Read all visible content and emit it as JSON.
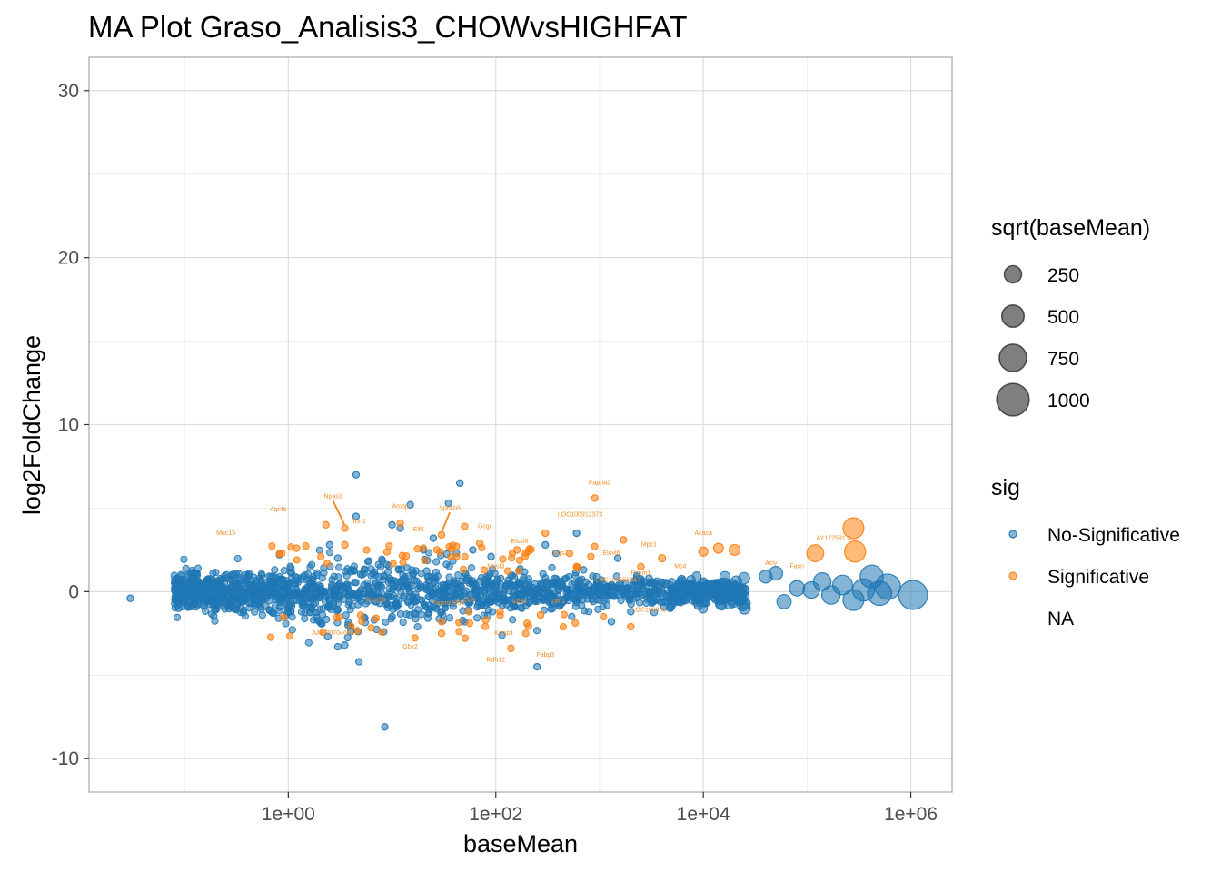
{
  "chart_data": {
    "type": "scatter",
    "title": "MA Plot Graso_Analisis3_CHOWvsHIGHFAT",
    "xlabel": "baseMean",
    "ylabel": "log2FoldChange",
    "x_scale": "log10",
    "xlim": [
      0.012,
      2500000
    ],
    "ylim": [
      -12,
      32
    ],
    "x_ticks": [
      {
        "value": 1,
        "label": "1e+00"
      },
      {
        "value": 100,
        "label": "1e+02"
      },
      {
        "value": 10000,
        "label": "1e+04"
      },
      {
        "value": 1000000,
        "label": "1e+06"
      }
    ],
    "y_ticks": [
      {
        "value": -10,
        "label": "-10"
      },
      {
        "value": 0,
        "label": "0"
      },
      {
        "value": 10,
        "label": "10"
      },
      {
        "value": 20,
        "label": "20"
      },
      {
        "value": 30,
        "label": "30"
      }
    ],
    "grid": true,
    "colors": {
      "No-Significative": "#1f77b4",
      "Significative": "#ff7f0e",
      "label": "#f28e2b",
      "legend_size_point": "#000000"
    },
    "size_legend": {
      "title": "sqrt(baseMean)",
      "entries": [
        {
          "value": 250,
          "label": "250"
        },
        {
          "value": 500,
          "label": "500"
        },
        {
          "value": 750,
          "label": "750"
        },
        {
          "value": 1000,
          "label": "1000"
        }
      ]
    },
    "color_legend": {
      "title": "sig",
      "entries": [
        {
          "key": "No-Significative",
          "label": "No-Significative"
        },
        {
          "key": "Significative",
          "label": "Significative"
        },
        {
          "key": "NA",
          "label": "NA"
        }
      ]
    },
    "series": [
      {
        "name": "No-Significative",
        "points": [
          {
            "x": 0.03,
            "y": -0.4
          },
          {
            "x": 0.8,
            "y": 0.2
          },
          {
            "x": 4.5,
            "y": 7.0
          },
          {
            "x": 45,
            "y": 6.5
          },
          {
            "x": 4.5,
            "y": 4.5
          },
          {
            "x": 10,
            "y": 4.0
          },
          {
            "x": 35,
            "y": 5.3
          },
          {
            "x": 15,
            "y": 5.2
          },
          {
            "x": 12,
            "y": 3.8
          },
          {
            "x": 25,
            "y": 3.2
          },
          {
            "x": 2.5,
            "y": 2.8
          },
          {
            "x": 3,
            "y": 2.0
          },
          {
            "x": 20,
            "y": 2.5
          },
          {
            "x": 60,
            "y": 2.5
          },
          {
            "x": 90,
            "y": 2.1
          },
          {
            "x": 300,
            "y": 2.8
          },
          {
            "x": 380,
            "y": 2.3
          },
          {
            "x": 600,
            "y": 3.5
          },
          {
            "x": 1500,
            "y": 2.0
          },
          {
            "x": 2.4,
            "y": -2.7
          },
          {
            "x": 4,
            "y": -2.4
          },
          {
            "x": 3.5,
            "y": -3.2
          },
          {
            "x": 3,
            "y": -3.3
          },
          {
            "x": 4.8,
            "y": -4.2
          },
          {
            "x": 8.5,
            "y": -8.1
          },
          {
            "x": 10,
            "y": -1.5
          },
          {
            "x": 30,
            "y": -1.2
          },
          {
            "x": 2,
            "y": -1.8
          },
          {
            "x": 250,
            "y": -4.5
          },
          {
            "x": 1300,
            "y": -1.8
          },
          {
            "x": 2000,
            "y": -1.2
          },
          {
            "x": 6000,
            "y": 0.6
          },
          {
            "x": 9000,
            "y": -0.8
          },
          {
            "x": 15000,
            "y": 0.5
          },
          {
            "x": 25000,
            "y": -1.0
          },
          {
            "x": 40000,
            "y": 0.9
          },
          {
            "x": 50000,
            "y": 1.1
          },
          {
            "x": 60000,
            "y": -0.6
          },
          {
            "x": 80000,
            "y": 0.2
          },
          {
            "x": 110000,
            "y": 0.1
          },
          {
            "x": 140000,
            "y": 0.6
          },
          {
            "x": 170000,
            "y": -0.2
          },
          {
            "x": 220000,
            "y": 0.4
          },
          {
            "x": 280000,
            "y": -0.5
          },
          {
            "x": 350000,
            "y": 0.1
          },
          {
            "x": 420000,
            "y": 0.9
          },
          {
            "x": 600000,
            "y": 0.3
          },
          {
            "x": 1050000,
            "y": -0.2
          },
          {
            "x": 500000,
            "y": -0.1
          },
          {
            "x": 3000,
            "y": 0.8
          },
          {
            "x": 4500,
            "y": -0.3
          },
          {
            "x": 700,
            "y": 1.3
          },
          {
            "x": 150,
            "y": -0.9
          },
          {
            "x": 0.3,
            "y": 1.0
          },
          {
            "x": 0.15,
            "y": -0.8
          }
        ]
      },
      {
        "name": "Significative",
        "points": [
          {
            "x": 900,
            "y": 5.6
          },
          {
            "x": 280000,
            "y": 3.8
          },
          {
            "x": 290000,
            "y": 2.4
          },
          {
            "x": 120000,
            "y": 2.3
          },
          {
            "x": 10000,
            "y": 2.4
          },
          {
            "x": 14000,
            "y": 2.6
          },
          {
            "x": 20000,
            "y": 2.5
          },
          {
            "x": 1700,
            "y": 3.1
          },
          {
            "x": 3.5,
            "y": 3.8
          },
          {
            "x": 2.3,
            "y": 4.0
          },
          {
            "x": 1.2,
            "y": 2.6
          },
          {
            "x": 3.5,
            "y": 2.8
          },
          {
            "x": 50,
            "y": 3.9
          },
          {
            "x": 30,
            "y": 3.4
          },
          {
            "x": 300,
            "y": 3.5
          },
          {
            "x": 160,
            "y": 2.5
          },
          {
            "x": 12,
            "y": 4.1
          },
          {
            "x": 20,
            "y": 2.6
          },
          {
            "x": 70,
            "y": 2.9
          },
          {
            "x": 2500,
            "y": 1.5
          },
          {
            "x": 4000,
            "y": 2.0
          },
          {
            "x": 30,
            "y": -1.8
          },
          {
            "x": 30,
            "y": -2.5
          },
          {
            "x": 140,
            "y": -3.4
          },
          {
            "x": 200,
            "y": -1.9
          },
          {
            "x": 7,
            "y": -1.6
          },
          {
            "x": 2000,
            "y": -2.1
          },
          {
            "x": 55,
            "y": -1.2
          },
          {
            "x": 80,
            "y": -1.7
          },
          {
            "x": 270,
            "y": -1.4
          },
          {
            "x": 110,
            "y": -1.2
          },
          {
            "x": 600,
            "y": 1.5
          }
        ]
      }
    ],
    "annotations": [
      {
        "gene": "Pappa2",
        "x": 900,
        "y": 5.6,
        "label_x": 1000,
        "label_y": 6.4
      },
      {
        "gene": "Npas1",
        "x": 3.5,
        "y": 3.8,
        "label_x": 2.7,
        "label_y": 5.6,
        "leader": true
      },
      {
        "gene": "Atp4b",
        "x": 2.3,
        "y": 4.0,
        "label_x": 0.8,
        "label_y": 4.8
      },
      {
        "gene": "Muc15",
        "x": 1.2,
        "y": 2.6,
        "label_x": 0.25,
        "label_y": 3.4
      },
      {
        "gene": "Ton1",
        "x": 4.5,
        "y": 4.5,
        "label_x": 4.8,
        "label_y": 4.1
      },
      {
        "gene": "Ambp",
        "x": 12,
        "y": 4.1,
        "label_x": 12,
        "label_y": 5.0
      },
      {
        "gene": "Elf5",
        "x": 15,
        "y": 3.6,
        "label_x": 18,
        "label_y": 3.6
      },
      {
        "gene": "Sphkb5",
        "x": 30,
        "y": 3.4,
        "label_x": 36,
        "label_y": 4.9,
        "leader": true
      },
      {
        "gene": "Gcgr",
        "x": 50,
        "y": 3.9,
        "label_x": 78,
        "label_y": 3.8
      },
      {
        "gene": "LOC100912373",
        "x": 300,
        "y": 3.5,
        "label_x": 650,
        "label_y": 4.5
      },
      {
        "gene": "Elovl6",
        "x": 160,
        "y": 2.5,
        "label_x": 170,
        "label_y": 2.9
      },
      {
        "gene": "Rgs2",
        "x": 350,
        "y": 2.3,
        "label_x": 420,
        "label_y": 2.2
      },
      {
        "gene": "Elovl6",
        "x": 1500,
        "y": 2.0,
        "label_x": 1300,
        "label_y": 2.2
      },
      {
        "gene": "Mpc1",
        "x": 2500,
        "y": 1.5,
        "label_x": 3000,
        "label_y": 2.7
      },
      {
        "gene": "Acaca",
        "x": 10000,
        "y": 2.4,
        "label_x": 10000,
        "label_y": 3.4
      },
      {
        "gene": "AY172581.9",
        "x": 280000,
        "y": 3.8,
        "label_x": 180000,
        "label_y": 3.1
      },
      {
        "gene": "Acly",
        "x": 50000,
        "y": 1.1,
        "label_x": 45000,
        "label_y": 1.6
      },
      {
        "gene": "Fasn",
        "x": 120000,
        "y": 2.3,
        "label_x": 80000,
        "label_y": 1.4
      },
      {
        "gene": "Mc4",
        "x": 6000,
        "y": 0.6,
        "label_x": 6000,
        "label_y": 1.4
      },
      {
        "gene": "Pcrim1",
        "x": 2500,
        "y": 1.0,
        "label_x": 2500,
        "label_y": 1.0
      },
      {
        "gene": "LOC102556347",
        "x": 1000,
        "y": 0.6,
        "label_x": 1500,
        "label_y": 0.6
      },
      {
        "gene": "Mgst3",
        "x": 80,
        "y": 1.0,
        "label_x": 100,
        "label_y": 1.4
      },
      {
        "gene": "Kcnj16",
        "x": 7,
        "y": -0.6,
        "label_x": 7,
        "label_y": -0.6
      },
      {
        "gene": "Tmem200b",
        "x": 30,
        "y": -0.8,
        "label_x": 35,
        "label_y": -0.8
      },
      {
        "gene": "Cbs",
        "x": 55,
        "y": -0.6,
        "label_x": 55,
        "label_y": -0.6
      },
      {
        "gene": "Cpa1",
        "x": 200,
        "y": -0.7,
        "label_x": 170,
        "label_y": -0.7
      },
      {
        "gene": "Zim1",
        "x": 500,
        "y": -0.7,
        "label_x": 400,
        "label_y": -0.7
      },
      {
        "gene": "LOC100362",
        "x": 3000,
        "y": -1.2,
        "label_x": 3000,
        "label_y": -1.2
      },
      {
        "gene": "AABR07046007",
        "x": 2.4,
        "y": -2.7,
        "label_x": 2.8,
        "label_y": -2.6
      },
      {
        "gene": "Gbx2",
        "x": 30,
        "y": -2.5,
        "label_x": 15,
        "label_y": -3.4
      },
      {
        "gene": "Kcnip1",
        "x": 140,
        "y": -3.4,
        "label_x": 120,
        "label_y": -2.6
      },
      {
        "gene": "Rdh12",
        "x": 140,
        "y": -3.4,
        "label_x": 100,
        "label_y": -4.2
      },
      {
        "gene": "Fabp3",
        "x": 250,
        "y": -4.5,
        "label_x": 300,
        "label_y": -3.9
      }
    ]
  }
}
